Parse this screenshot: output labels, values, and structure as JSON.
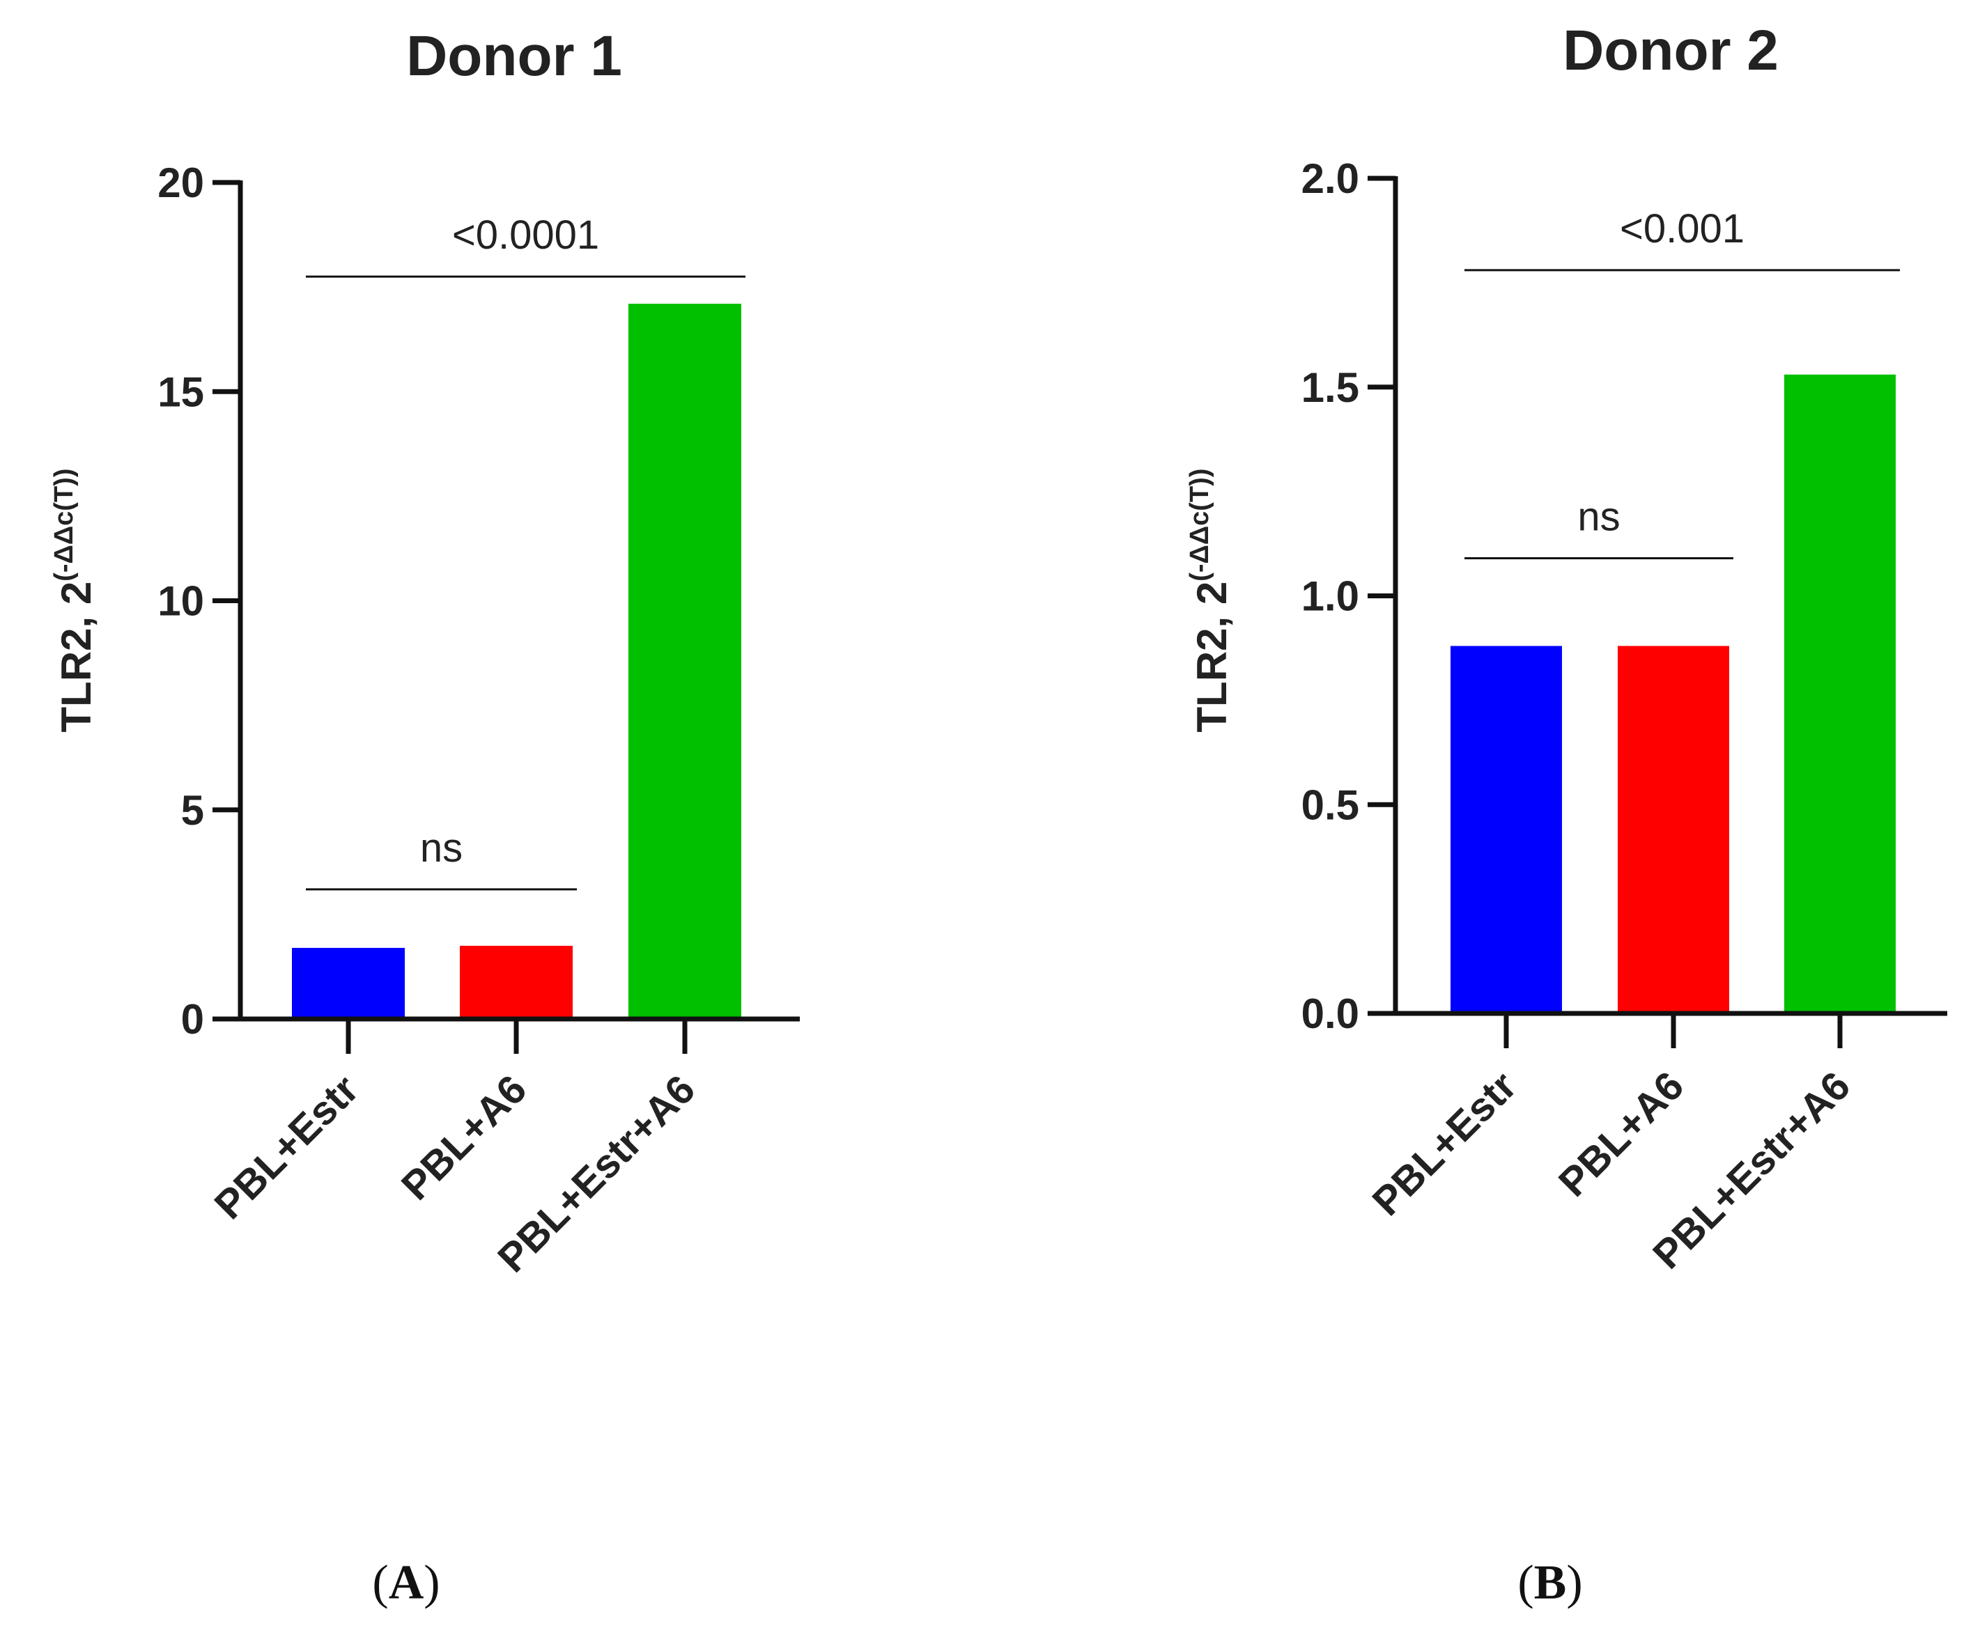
{
  "chart_data": [
    {
      "type": "bar",
      "panel": "A",
      "title": "Donor 1",
      "ylabel": "TLR2, 2",
      "ylabel_sup": "(-ΔΔc(T))",
      "categories": [
        "PBL+Estr",
        "PBL+A6",
        "PBL+Estr+A6"
      ],
      "values": [
        1.7,
        1.75,
        17.1
      ],
      "colors": [
        "#0000ff",
        "#ff0000",
        "#00c000"
      ],
      "ylim": [
        0,
        20
      ],
      "yticks": [
        0,
        5,
        10,
        15,
        20
      ],
      "ytick_labels": [
        "0",
        "5",
        "10",
        "15",
        "20"
      ],
      "annotations": [
        {
          "label": "ns",
          "from": 0,
          "to": 1,
          "y": 3.1
        },
        {
          "label": "<0.0001",
          "from": 0,
          "to": 2,
          "y": 17.75
        }
      ],
      "grid": false,
      "legend": "none"
    },
    {
      "type": "bar",
      "panel": "B",
      "title": "Donor 2",
      "ylabel": "TLR2, 2",
      "ylabel_sup": "(-ΔΔc(T))",
      "categories": [
        "PBL+Estr",
        "PBL+A6",
        "PBL+Estr+A6"
      ],
      "values": [
        0.88,
        0.88,
        1.53
      ],
      "colors": [
        "#0000ff",
        "#ff0000",
        "#00c000"
      ],
      "ylim": [
        0,
        2.0
      ],
      "yticks": [
        0,
        0.5,
        1.0,
        1.5,
        2.0
      ],
      "ytick_labels": [
        "0.0",
        "0.5",
        "1.0",
        "1.5",
        "2.0"
      ],
      "annotations": [
        {
          "label": "ns",
          "from": 0,
          "to": 1,
          "y": 1.09
        },
        {
          "label": "<0.001",
          "from": 0,
          "to": 2,
          "y": 1.78
        }
      ],
      "grid": false,
      "legend": "none"
    }
  ]
}
